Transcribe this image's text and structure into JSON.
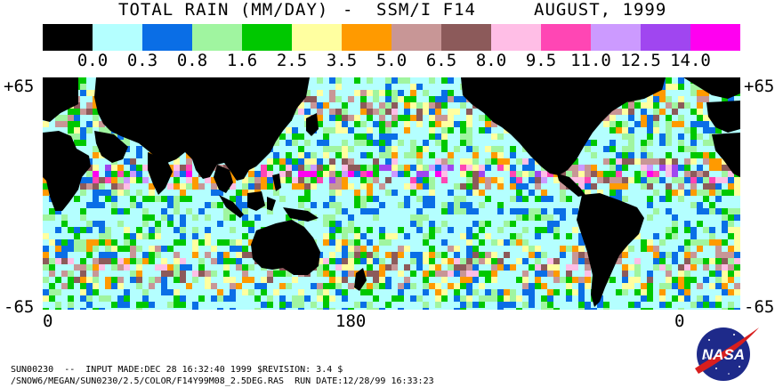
{
  "header": {
    "title": "TOTAL RAIN (MM/DAY)",
    "separator": "-",
    "instrument": "SSM/I F14",
    "date": "AUGUST, 1999"
  },
  "legend": {
    "colors": [
      "#000000",
      "#b4ffff",
      "#0a6ee6",
      "#a0f5a0",
      "#00c800",
      "#ffffa0",
      "#ff9a00",
      "#c89696",
      "#8c5a5a",
      "#ffbee6",
      "#ff46b4",
      "#cc9aff",
      "#a046f0",
      "#ff00f0"
    ],
    "labels": [
      "0.0",
      "0.3",
      "0.8",
      "1.6",
      "2.5",
      "3.5",
      "5.0",
      "6.5",
      "8.0",
      "9.5",
      "11.0",
      "12.5",
      "14.0"
    ]
  },
  "map": {
    "latitude_labels": {
      "top": "+65",
      "bottom": "-65"
    },
    "longitude_labels": [
      "0",
      "180",
      "0"
    ],
    "land_color": "#000000",
    "background_color": "#b4ffff"
  },
  "footer": {
    "line1": "SUN00230  --  INPUT MADE:DEC 28 16:32:40 1999 $REVISION: 3.4 $",
    "line2": "/SNOW6/MEGAN/SUN0230/2.5/COLOR/F14Y99M08_2.5DEG.RAS  RUN DATE:12/28/99 16:33:23"
  },
  "logo": {
    "text": "NASA",
    "colors": {
      "globe": "#1e2a8a",
      "swoosh": "#d81e1e",
      "text": "#ffffff"
    }
  }
}
